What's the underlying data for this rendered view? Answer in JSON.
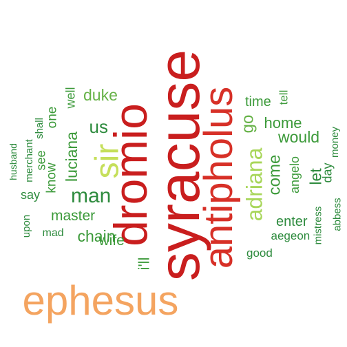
{
  "palette": {
    "dark_red": "#c91e1e",
    "red": "#d73027",
    "orange": "#f4a460",
    "yellow_green": "#c5df5a",
    "green": "#66b247",
    "dark_green": "#2e8b3e"
  },
  "words": [
    {
      "id": "ephesus",
      "text": "ephesus",
      "color": "#f4a460"
    },
    {
      "id": "syracuse",
      "text": "syracuse",
      "color": "#c91e1e"
    },
    {
      "id": "dromio",
      "text": "dromio",
      "color": "#c91e1e"
    },
    {
      "id": "antipholus",
      "text": "antipholus",
      "color": "#d73027"
    },
    {
      "id": "sir",
      "text": "sir",
      "color": "#c5df5a"
    },
    {
      "id": "adriana",
      "text": "adriana",
      "color": "#a8d65a"
    },
    {
      "id": "man",
      "text": "man",
      "color": "#2e8b3e"
    },
    {
      "id": "luciana",
      "text": "luciana",
      "color": "#3c9a3a"
    },
    {
      "id": "us",
      "text": "us",
      "color": "#2e8b3e"
    },
    {
      "id": "duke",
      "text": "duke",
      "color": "#66b247"
    },
    {
      "id": "chain",
      "text": "chain",
      "color": "#3c9a3a"
    },
    {
      "id": "master",
      "text": "master",
      "color": "#3c9a3a"
    },
    {
      "id": "wife",
      "text": "wife",
      "color": "#3c9a3a"
    },
    {
      "id": "ill",
      "text": "i'll",
      "color": "#3c9a3a"
    },
    {
      "id": "know",
      "text": "know",
      "color": "#3c9a3a"
    },
    {
      "id": "one",
      "text": "one",
      "color": "#3c9a3a"
    },
    {
      "id": "well",
      "text": "well",
      "color": "#3c9a3a"
    },
    {
      "id": "see",
      "text": "see",
      "color": "#3c9a3a"
    },
    {
      "id": "say",
      "text": "say",
      "color": "#2e8b3e"
    },
    {
      "id": "mad",
      "text": "mad",
      "color": "#2e8b3e"
    },
    {
      "id": "shall",
      "text": "shall",
      "color": "#2e8b3e"
    },
    {
      "id": "merchant",
      "text": "merchant",
      "color": "#2e8b3e"
    },
    {
      "id": "husband",
      "text": "husband",
      "color": "#2e8b3e"
    },
    {
      "id": "upon",
      "text": "upon",
      "color": "#2e8b3e"
    },
    {
      "id": "go",
      "text": "go",
      "color": "#66b247"
    },
    {
      "id": "time",
      "text": "time",
      "color": "#3c9a3a"
    },
    {
      "id": "tell",
      "text": "tell",
      "color": "#3c9a3a"
    },
    {
      "id": "home",
      "text": "home",
      "color": "#3c9a3a"
    },
    {
      "id": "would",
      "text": "would",
      "color": "#3c9a3a"
    },
    {
      "id": "come",
      "text": "come",
      "color": "#3c9a3a"
    },
    {
      "id": "angelo",
      "text": "angelo",
      "color": "#3c9a3a"
    },
    {
      "id": "let",
      "text": "let",
      "color": "#2e8b3e"
    },
    {
      "id": "day",
      "text": "day",
      "color": "#2e8b3e"
    },
    {
      "id": "money",
      "text": "money",
      "color": "#2e8b3e"
    },
    {
      "id": "enter",
      "text": "enter",
      "color": "#2e8b3e"
    },
    {
      "id": "aegeon",
      "text": "aegeon",
      "color": "#2e8b3e"
    },
    {
      "id": "mistress",
      "text": "mistress",
      "color": "#2e8b3e"
    },
    {
      "id": "abbess",
      "text": "abbess",
      "color": "#2e8b3e"
    },
    {
      "id": "good",
      "text": "good",
      "color": "#2e8b3e"
    }
  ]
}
